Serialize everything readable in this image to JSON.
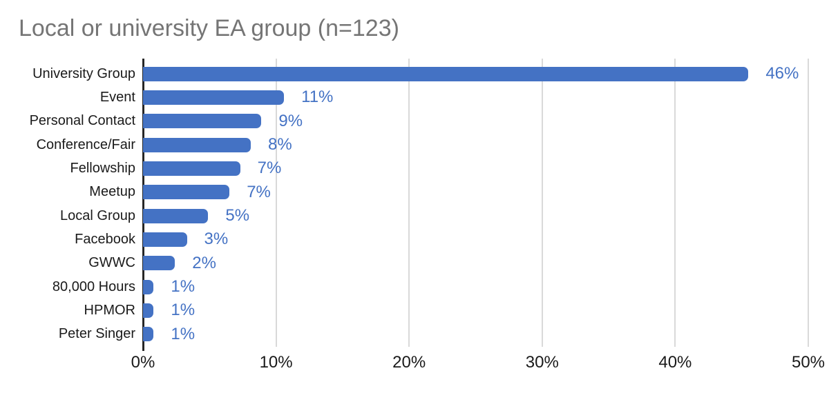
{
  "chart_data": {
    "type": "bar",
    "orientation": "horizontal",
    "title": "Local or university EA group (n=123)",
    "categories": [
      "University Group",
      "Event",
      "Personal Contact",
      "Conference/Fair",
      "Fellowship",
      "Meetup",
      "Local Group",
      "Facebook",
      "GWWC",
      "80,000 Hours",
      "HPMOR",
      "Peter Singer"
    ],
    "values": [
      45.5,
      10.6,
      8.9,
      8.1,
      7.3,
      6.5,
      4.9,
      3.3,
      2.4,
      0.8,
      0.8,
      0.8
    ],
    "value_labels": [
      "46%",
      "11%",
      "9%",
      "8%",
      "7%",
      "7%",
      "5%",
      "3%",
      "2%",
      "1%",
      "1%",
      "1%"
    ],
    "xlabel": "",
    "ylabel": "",
    "xlim": [
      0,
      50
    ],
    "x_ticks": [
      0,
      10,
      20,
      30,
      40,
      50
    ],
    "x_tick_labels": [
      "0%",
      "10%",
      "20%",
      "30%",
      "40%",
      "50%"
    ],
    "grid": "vertical-only",
    "legend": "none",
    "colors": {
      "bar": "#4472C4",
      "value_label": "#4472C4",
      "title": "#757575",
      "category_label": "#1a1a1a",
      "tick_label": "#1a1a1a",
      "axis_line": "#262626",
      "gridline": "#D9D9D9",
      "background": "#FFFFFF"
    }
  }
}
